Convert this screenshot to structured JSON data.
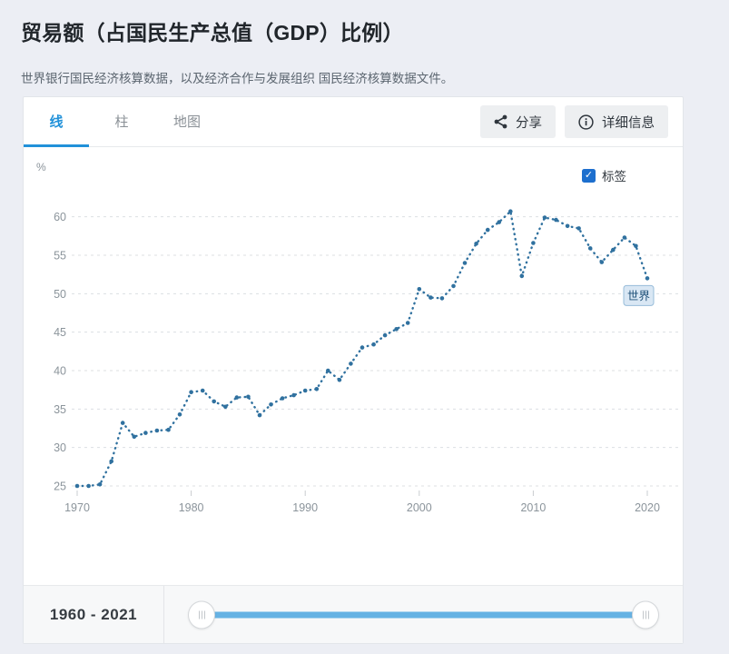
{
  "page": {
    "title": "贸易额（占国民生产总值（GDP）比例）",
    "subtitle": "世界银行国民经济核算数据，以及经济合作与发展组织 国民经济核算数据文件。"
  },
  "tabs": [
    {
      "id": "line",
      "label": "线",
      "active": true
    },
    {
      "id": "bar",
      "label": "柱",
      "active": false
    },
    {
      "id": "map",
      "label": "地图",
      "active": false
    }
  ],
  "actions": {
    "share_label": "分享",
    "details_label": "详细信息"
  },
  "chart_controls": {
    "labels_checkbox_label": "标签",
    "labels_checked": true,
    "checkbox_glyph": "✓"
  },
  "footer": {
    "range_label": "1960 - 2021"
  },
  "colors": {
    "accent": "#2191d9",
    "checkbox": "#1d6fce",
    "line": "#30719f",
    "grid": "#dcdfe2",
    "axis_text": "#8b949b",
    "tick": "#c9ccd0",
    "series_label_bg": "#d9e7f4",
    "series_label_border": "#97bcd9",
    "series_label_text": "#1d4f77",
    "slider_track": "#66b2e3"
  },
  "chart_data": {
    "type": "line",
    "title": "贸易额（占国民生产总值（GDP）比例）",
    "ylabel": "%",
    "xlabel": "",
    "grid": "horizontal-dashed",
    "line_style": "dotted-with-markers",
    "legend_position": "inline-end-label",
    "x_ticks": [
      1970,
      1980,
      1990,
      2000,
      2010,
      2020
    ],
    "y_ticks": [
      25,
      30,
      35,
      40,
      45,
      50,
      55,
      60
    ],
    "xlim": [
      1968,
      2022.5
    ],
    "ylim": [
      23.8,
      67.5
    ],
    "series": [
      {
        "name": "世界",
        "x": [
          1970,
          1971,
          1972,
          1973,
          1974,
          1975,
          1976,
          1977,
          1978,
          1979,
          1980,
          1981,
          1982,
          1983,
          1984,
          1985,
          1986,
          1987,
          1988,
          1989,
          1990,
          1991,
          1992,
          1993,
          1994,
          1995,
          1996,
          1997,
          1998,
          1999,
          2000,
          2001,
          2002,
          2003,
          2004,
          2005,
          2006,
          2007,
          2008,
          2009,
          2010,
          2011,
          2012,
          2013,
          2014,
          2015,
          2016,
          2017,
          2018,
          2019,
          2020
        ],
        "values": [
          25.0,
          25.0,
          25.2,
          28.2,
          33.2,
          31.4,
          31.9,
          32.2,
          32.3,
          34.3,
          37.2,
          37.4,
          36.0,
          35.3,
          36.5,
          36.6,
          34.2,
          35.6,
          36.4,
          36.8,
          37.4,
          37.6,
          40.0,
          38.8,
          40.9,
          43.0,
          43.4,
          44.6,
          45.4,
          46.2,
          50.6,
          49.5,
          49.4,
          51.0,
          54.0,
          56.5,
          58.3,
          59.3,
          60.7,
          52.3,
          56.6,
          59.9,
          59.6,
          58.8,
          58.5,
          55.9,
          54.1,
          55.7,
          57.3,
          56.2,
          52.0
        ]
      }
    ]
  }
}
